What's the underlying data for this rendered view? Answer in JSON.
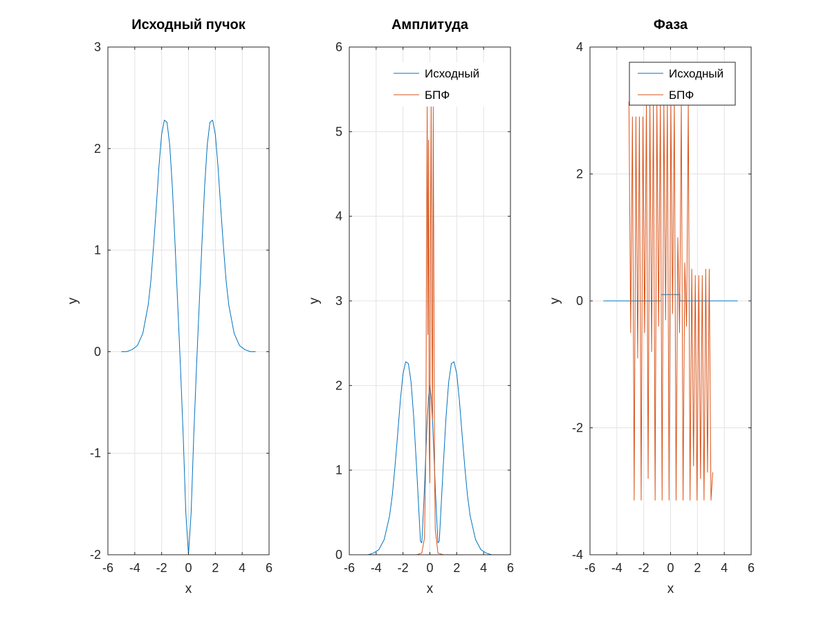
{
  "chart_data": [
    {
      "type": "line",
      "title": "Исходный пучок",
      "xlabel": "x",
      "ylabel": "y",
      "xlim": [
        -6,
        6
      ],
      "ylim": [
        -2,
        3
      ],
      "xticks": [
        "-6",
        "-4",
        "-2",
        "0",
        "2",
        "4",
        "6"
      ],
      "yticks": [
        "-2",
        "-1",
        "0",
        "1",
        "2",
        "3"
      ],
      "grid": true,
      "legend": null,
      "series": [
        {
          "color": "#0072BD",
          "x": [
            -5.0,
            -4.6,
            -4.2,
            -3.8,
            -3.4,
            -3.0,
            -2.8,
            -2.6,
            -2.4,
            -2.2,
            -2.0,
            -1.8,
            -1.6,
            -1.4,
            -1.2,
            -1.0,
            -0.8,
            -0.6,
            -0.4,
            -0.2,
            0.0,
            0.2,
            0.4,
            0.6,
            0.8,
            1.0,
            1.2,
            1.4,
            1.6,
            1.8,
            2.0,
            2.2,
            2.4,
            2.6,
            2.8,
            3.0,
            3.4,
            3.8,
            4.2,
            4.6,
            5.0
          ],
          "y": [
            0.0,
            0.0,
            0.02,
            0.06,
            0.18,
            0.46,
            0.7,
            1.04,
            1.42,
            1.82,
            2.14,
            2.28,
            2.26,
            2.04,
            1.62,
            1.06,
            0.46,
            -0.14,
            -0.8,
            -1.58,
            -2.0,
            -1.58,
            -0.8,
            -0.14,
            0.46,
            1.06,
            1.62,
            2.04,
            2.26,
            2.28,
            2.14,
            1.82,
            1.42,
            1.04,
            0.7,
            0.46,
            0.18,
            0.06,
            0.02,
            0.0,
            0.0
          ]
        }
      ]
    },
    {
      "type": "line",
      "title": "Амплитуда",
      "xlabel": "x",
      "ylabel": "y",
      "xlim": [
        -6,
        6
      ],
      "ylim": [
        0,
        6
      ],
      "xticks": [
        "-6",
        "-4",
        "-2",
        "0",
        "2",
        "4",
        "6"
      ],
      "yticks": [
        "0",
        "1",
        "2",
        "3",
        "4",
        "5",
        "6"
      ],
      "grid": true,
      "legend": {
        "position": "top-right",
        "entries": [
          "Исходный",
          "БПФ"
        ]
      },
      "series": [
        {
          "name": "Исходный",
          "color": "#0072BD",
          "x": [
            -5.0,
            -4.6,
            -4.2,
            -3.8,
            -3.4,
            -3.0,
            -2.8,
            -2.6,
            -2.4,
            -2.2,
            -2.0,
            -1.8,
            -1.6,
            -1.4,
            -1.2,
            -1.0,
            -0.8,
            -0.7,
            -0.6,
            -0.5,
            -0.4,
            -0.3,
            -0.2,
            -0.1,
            0.0,
            0.1,
            0.2,
            0.3,
            0.4,
            0.5,
            0.6,
            0.7,
            0.8,
            1.0,
            1.2,
            1.4,
            1.6,
            1.8,
            2.0,
            2.2,
            2.4,
            2.6,
            2.8,
            3.0,
            3.4,
            3.8,
            4.2,
            4.6,
            5.0
          ],
          "y": [
            0.0,
            0.0,
            0.02,
            0.06,
            0.18,
            0.46,
            0.7,
            1.04,
            1.42,
            1.82,
            2.14,
            2.28,
            2.26,
            2.04,
            1.62,
            1.06,
            0.46,
            0.16,
            0.14,
            0.46,
            0.8,
            1.2,
            1.58,
            1.86,
            2.0,
            1.86,
            1.58,
            1.2,
            0.8,
            0.46,
            0.14,
            0.16,
            0.46,
            1.06,
            1.62,
            2.04,
            2.26,
            2.28,
            2.14,
            1.82,
            1.42,
            1.04,
            0.7,
            0.46,
            0.18,
            0.06,
            0.02,
            0.0,
            0.0
          ]
        },
        {
          "name": "БПФ",
          "color": "#D95319",
          "x": [
            -3.0,
            -2.0,
            -1.0,
            -0.6,
            -0.4,
            -0.3,
            -0.25,
            -0.2,
            -0.15,
            -0.1,
            -0.05,
            0.0,
            0.05,
            0.1,
            0.15,
            0.2,
            0.25,
            0.3,
            0.35,
            0.4,
            0.6,
            1.0,
            2.0,
            3.0
          ],
          "y": [
            0.0,
            0.0,
            0.0,
            0.02,
            0.2,
            1.2,
            3.6,
            5.3,
            2.6,
            4.9,
            1.3,
            0.85,
            3.9,
            5.3,
            2.8,
            1.6,
            5.3,
            3.2,
            1.0,
            0.3,
            0.02,
            0.0,
            0.0,
            0.0
          ]
        }
      ]
    },
    {
      "type": "line",
      "title": "Фаза",
      "xlabel": "x",
      "ylabel": "y",
      "xlim": [
        -6,
        6
      ],
      "ylim": [
        -4,
        4
      ],
      "xticks": [
        "-6",
        "-4",
        "-2",
        "0",
        "2",
        "4",
        "6"
      ],
      "yticks": [
        "-4",
        "-2",
        "0",
        "2",
        "4"
      ],
      "grid": true,
      "legend": {
        "position": "top-right",
        "entries": [
          "Исходный",
          "БПФ"
        ]
      },
      "series": [
        {
          "name": "Исходный",
          "color": "#0072BD",
          "x": [
            -5.0,
            -0.7,
            -0.7,
            0.7,
            0.7,
            5.0
          ],
          "y": [
            0.0,
            0.0,
            0.1,
            0.1,
            0.0,
            0.0
          ]
        },
        {
          "name": "БПФ",
          "color": "#D95319",
          "x": [
            -3.1,
            -2.97,
            -2.84,
            -2.71,
            -2.58,
            -2.45,
            -2.32,
            -2.19,
            -2.06,
            -1.93,
            -1.8,
            -1.67,
            -1.54,
            -1.41,
            -1.28,
            -1.15,
            -1.02,
            -0.89,
            -0.76,
            -0.63,
            -0.5,
            -0.37,
            -0.24,
            -0.11,
            0.02,
            0.15,
            0.28,
            0.41,
            0.54,
            0.67,
            0.8,
            0.93,
            1.06,
            1.19,
            1.32,
            1.45,
            1.58,
            1.71,
            1.84,
            1.97,
            2.1,
            2.23,
            2.36,
            2.49,
            2.62,
            2.75,
            2.88,
            3.01,
            3.14
          ],
          "y": [
            3.14,
            -0.5,
            2.9,
            -3.14,
            2.9,
            -0.9,
            2.9,
            -3.14,
            2.9,
            -0.5,
            3.14,
            -2.8,
            3.14,
            -0.8,
            3.14,
            -3.14,
            3.14,
            -0.4,
            3.14,
            -3.14,
            3.14,
            -0.3,
            3.14,
            -3.14,
            3.14,
            -0.2,
            3.14,
            -3.14,
            1.0,
            -0.5,
            3.14,
            -3.14,
            0.6,
            -0.4,
            3.14,
            -3.14,
            0.5,
            -2.6,
            0.4,
            -3.14,
            0.4,
            -2.8,
            0.4,
            -3.14,
            0.5,
            -2.7,
            0.5,
            -3.14,
            -2.7
          ]
        }
      ]
    }
  ]
}
